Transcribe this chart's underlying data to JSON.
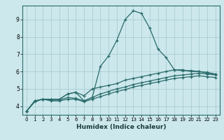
{
  "title": "",
  "xlabel": "Humidex (Indice chaleur)",
  "ylabel": "",
  "xlim": [
    -0.5,
    23.5
  ],
  "ylim": [
    3.5,
    9.8
  ],
  "background_color": "#cce8ec",
  "grid_color": "#aacdd4",
  "line_color": "#2a6b6b",
  "xticks": [
    0,
    1,
    2,
    3,
    4,
    5,
    6,
    7,
    8,
    9,
    10,
    11,
    12,
    13,
    14,
    15,
    16,
    17,
    18,
    19,
    20,
    21,
    22,
    23
  ],
  "yticks": [
    4,
    5,
    6,
    7,
    8,
    9
  ],
  "curve1_x": [
    0,
    1,
    2,
    3,
    4,
    5,
    6,
    7,
    8,
    9,
    10,
    11,
    12,
    13,
    14,
    15,
    16,
    17,
    18,
    19,
    20,
    21,
    22,
    23
  ],
  "curve1_y": [
    3.7,
    4.3,
    4.4,
    4.4,
    4.4,
    4.7,
    4.8,
    4.3,
    4.5,
    6.3,
    6.9,
    7.8,
    9.0,
    9.5,
    9.35,
    8.5,
    7.3,
    6.8,
    6.1,
    6.1,
    6.0,
    6.0,
    5.9,
    5.85
  ],
  "curve2_x": [
    0,
    1,
    2,
    3,
    4,
    5,
    6,
    7,
    8,
    9,
    10,
    11,
    12,
    13,
    14,
    15,
    16,
    17,
    18,
    19,
    20,
    21,
    22,
    23
  ],
  "curve2_y": [
    3.7,
    4.3,
    4.4,
    4.4,
    4.4,
    4.7,
    4.8,
    4.6,
    5.0,
    5.1,
    5.2,
    5.3,
    5.5,
    5.6,
    5.7,
    5.8,
    5.9,
    6.0,
    6.1,
    6.05,
    6.05,
    6.0,
    5.95,
    5.85
  ],
  "curve3_x": [
    0,
    1,
    2,
    3,
    4,
    5,
    6,
    7,
    8,
    9,
    10,
    11,
    12,
    13,
    14,
    15,
    16,
    17,
    18,
    19,
    20,
    21,
    22,
    23
  ],
  "curve3_y": [
    3.7,
    4.3,
    4.4,
    4.35,
    4.35,
    4.5,
    4.45,
    4.3,
    4.5,
    4.7,
    4.85,
    5.0,
    5.1,
    5.25,
    5.35,
    5.45,
    5.55,
    5.65,
    5.75,
    5.8,
    5.85,
    5.9,
    5.85,
    5.8
  ],
  "curve4_x": [
    0,
    1,
    2,
    3,
    4,
    5,
    6,
    7,
    8,
    9,
    10,
    11,
    12,
    13,
    14,
    15,
    16,
    17,
    18,
    19,
    20,
    21,
    22,
    23
  ],
  "curve4_y": [
    3.7,
    4.25,
    4.4,
    4.3,
    4.3,
    4.4,
    4.4,
    4.25,
    4.4,
    4.55,
    4.7,
    4.85,
    4.95,
    5.1,
    5.2,
    5.3,
    5.4,
    5.5,
    5.6,
    5.65,
    5.7,
    5.75,
    5.7,
    5.65
  ]
}
